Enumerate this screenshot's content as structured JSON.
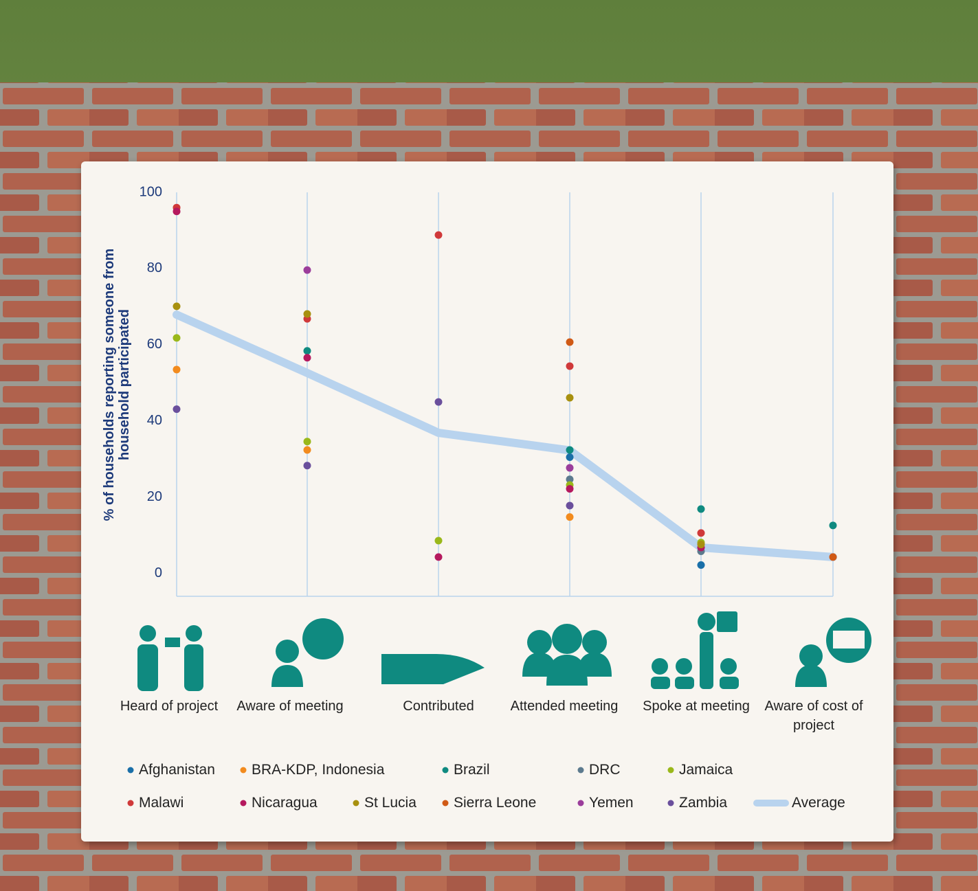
{
  "chart_data": {
    "type": "scatter",
    "y_label": "% of households reporting someone from household participated",
    "categories": [
      "Heard of project",
      "Aware of meeting",
      "Contributed",
      "Attended meeting",
      "Spoke at meeting",
      "Aware of cost of project"
    ],
    "ylim": [
      -6,
      100
    ],
    "yticks": [
      0,
      20,
      40,
      60,
      80,
      100
    ],
    "grid": true,
    "grid_color": "#b9d3ec",
    "series": [
      {
        "name": "Afghanistan",
        "color": "#1a6fa8",
        "values": [
          null,
          null,
          null,
          30.5,
          2.2,
          null
        ]
      },
      {
        "name": "BRA-KDP, Indonesia",
        "color": "#f28b1e",
        "values": [
          53.5,
          32.4,
          null,
          14.8,
          null,
          null
        ]
      },
      {
        "name": "Brazil",
        "color": "#0f8a80",
        "values": [
          null,
          58.4,
          null,
          32.4,
          16.9,
          12.6
        ]
      },
      {
        "name": "DRC",
        "color": "#5c7a8e",
        "values": [
          null,
          null,
          null,
          24.7,
          5.8,
          null
        ]
      },
      {
        "name": "Jamaica",
        "color": "#9ab81a",
        "values": [
          61.8,
          34.6,
          8.6,
          23.2,
          8.1,
          null
        ]
      },
      {
        "name": "Malawi",
        "color": "#d0393a",
        "values": [
          96.0,
          66.8,
          88.8,
          54.4,
          10.6,
          null
        ]
      },
      {
        "name": "Nicaragua",
        "color": "#b5195e",
        "values": [
          95.0,
          56.6,
          4.3,
          22.2,
          6.8,
          null
        ]
      },
      {
        "name": "St Lucia",
        "color": "#a8900f",
        "values": [
          70.1,
          68.1,
          null,
          46.1,
          7.6,
          null
        ]
      },
      {
        "name": "Sierra Leone",
        "color": "#d05a16",
        "values": [
          null,
          null,
          null,
          60.7,
          null,
          4.3
        ]
      },
      {
        "name": "Yemen",
        "color": "#9b3d9b",
        "values": [
          null,
          79.6,
          null,
          27.7,
          null,
          null
        ]
      },
      {
        "name": "Zambia",
        "color": "#6a4f9c",
        "values": [
          43.1,
          28.3,
          45.0,
          17.8,
          null,
          null
        ]
      },
      {
        "name": "Average",
        "color": "#b8d3ee",
        "type": "line",
        "values": [
          67.9,
          52.6,
          36.9,
          32.3,
          6.8,
          4.3
        ]
      }
    ]
  }
}
